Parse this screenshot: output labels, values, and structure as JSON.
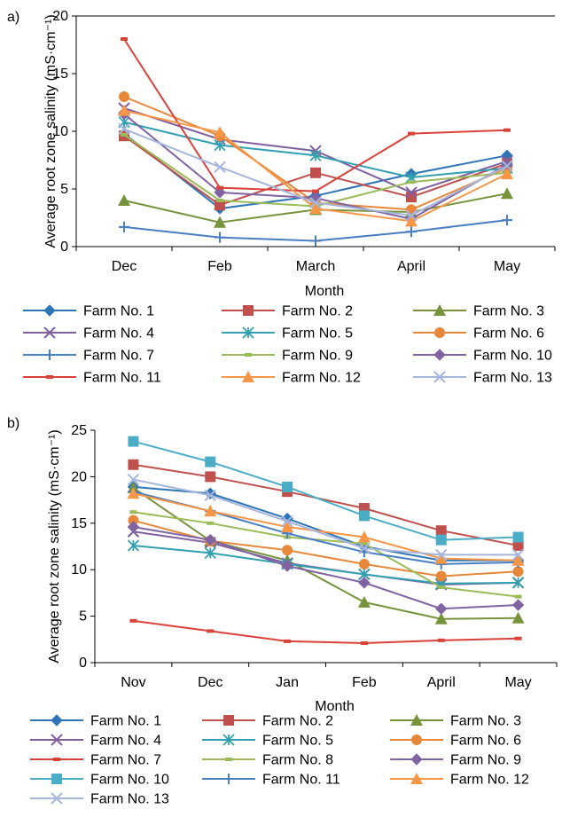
{
  "chart_data": [
    {
      "type": "line",
      "panel_label": "a)",
      "title": "",
      "xlabel": "Month",
      "ylabel": "Average root zone salinity (mS·cm⁻¹)",
      "categories": [
        "Dec",
        "Feb",
        "March",
        "April",
        "May"
      ],
      "ylim": [
        0,
        20
      ],
      "yticks": [
        0,
        5,
        10,
        15,
        20
      ],
      "grid": false,
      "legend_placement": "bottom",
      "series": [
        {
          "name": "Farm No. 1",
          "color": "#2E75B6",
          "marker": "diamond",
          "values": [
            9.8,
            3.3,
            4.4,
            6.3,
            7.9
          ]
        },
        {
          "name": "Farm No. 2",
          "color": "#C0504D",
          "marker": "square",
          "values": [
            9.6,
            3.6,
            6.4,
            4.3,
            7.2
          ]
        },
        {
          "name": "Farm No. 3",
          "color": "#77933C",
          "marker": "triangle",
          "values": [
            4.0,
            2.1,
            3.2,
            3.0,
            4.6
          ]
        },
        {
          "name": "Farm No. 4",
          "color": "#7F5FA0",
          "marker": "x",
          "values": [
            12.0,
            9.3,
            8.3,
            4.7,
            7.4
          ]
        },
        {
          "name": "Farm No. 5",
          "color": "#31A0B0",
          "marker": "star",
          "values": [
            10.8,
            8.8,
            7.9,
            6.0,
            6.8
          ]
        },
        {
          "name": "Farm No. 6",
          "color": "#E6873A",
          "marker": "circle",
          "values": [
            13.0,
            9.6,
            3.8,
            3.2,
            6.8
          ]
        },
        {
          "name": "Farm No. 7",
          "color": "#4A7EC2",
          "marker": "plus",
          "values": [
            1.7,
            0.8,
            0.5,
            1.3,
            2.3
          ]
        },
        {
          "name": "Farm No. 9",
          "color": "#9BBB59",
          "marker": "dash",
          "values": [
            9.7,
            4.0,
            3.5,
            5.6,
            6.4
          ]
        },
        {
          "name": "Farm No. 10",
          "color": "#8064A2",
          "marker": "diamond",
          "values": [
            11.5,
            4.7,
            4.2,
            2.4,
            7.1
          ]
        },
        {
          "name": "Farm No. 11",
          "color": "#D9423B",
          "marker": "dash",
          "values": [
            18.0,
            5.1,
            4.8,
            9.8,
            10.1
          ]
        },
        {
          "name": "Farm No. 12",
          "color": "#F79646",
          "marker": "triangle",
          "values": [
            11.8,
            9.9,
            3.3,
            2.2,
            6.3
          ]
        },
        {
          "name": "Farm No. 13",
          "color": "#A6B5DB",
          "marker": "x",
          "values": [
            10.2,
            6.9,
            3.8,
            2.7,
            7.0
          ]
        }
      ]
    },
    {
      "type": "line",
      "panel_label": "b)",
      "title": "",
      "xlabel": "Month",
      "ylabel": "Average root zone  salinity (mS·cm⁻¹)",
      "categories": [
        "Nov",
        "Dec",
        "Jan",
        "Feb",
        "April",
        "May"
      ],
      "ylim": [
        0,
        25
      ],
      "yticks": [
        0,
        5,
        10,
        15,
        20,
        25
      ],
      "grid": false,
      "legend_placement": "bottom",
      "series": [
        {
          "name": "Farm No. 1",
          "color": "#2E75B6",
          "marker": "diamond",
          "values": [
            18.9,
            18.2,
            15.5,
            12.5,
            11.0,
            11.0
          ]
        },
        {
          "name": "Farm No. 2",
          "color": "#C0504D",
          "marker": "square",
          "values": [
            21.3,
            20.0,
            18.4,
            16.6,
            14.2,
            12.6
          ]
        },
        {
          "name": "Farm No. 3",
          "color": "#77933C",
          "marker": "triangle",
          "values": [
            18.8,
            13.1,
            11.0,
            6.5,
            4.7,
            4.8
          ]
        },
        {
          "name": "Farm No. 4",
          "color": "#7F5FA0",
          "marker": "x",
          "values": [
            14.1,
            12.9,
            10.7,
            9.5,
            8.4,
            8.6
          ]
        },
        {
          "name": "Farm No. 5",
          "color": "#31A0B0",
          "marker": "star",
          "values": [
            12.6,
            11.8,
            10.6,
            9.5,
            8.5,
            8.6
          ]
        },
        {
          "name": "Farm No. 6",
          "color": "#E6873A",
          "marker": "circle",
          "values": [
            15.3,
            13.1,
            12.1,
            10.6,
            9.3,
            9.8
          ]
        },
        {
          "name": "Farm No. 7",
          "color": "#D9423B",
          "marker": "dash",
          "values": [
            4.5,
            3.4,
            2.3,
            2.1,
            2.4,
            2.6
          ]
        },
        {
          "name": "Farm No. 8",
          "color": "#9BBB59",
          "marker": "dash",
          "values": [
            16.2,
            15.0,
            13.5,
            12.8,
            8.1,
            7.1
          ]
        },
        {
          "name": "Farm No. 9",
          "color": "#8064A2",
          "marker": "diamond",
          "values": [
            14.6,
            13.2,
            10.4,
            8.6,
            5.8,
            6.2
          ]
        },
        {
          "name": "Farm No. 10",
          "color": "#4BACC6",
          "marker": "square",
          "values": [
            23.8,
            21.6,
            18.9,
            15.8,
            13.2,
            13.5
          ]
        },
        {
          "name": "Farm No. 11",
          "color": "#4A7EC2",
          "marker": "plus",
          "values": [
            18.4,
            16.3,
            13.9,
            11.9,
            10.6,
            10.8
          ]
        },
        {
          "name": "Farm No. 12",
          "color": "#F79646",
          "marker": "triangle",
          "values": [
            18.2,
            16.3,
            14.6,
            13.5,
            11.2,
            11.0
          ]
        },
        {
          "name": "Farm No. 13",
          "color": "#A6B5DB",
          "marker": "x",
          "values": [
            19.7,
            18.0,
            15.2,
            12.3,
            11.6,
            11.6
          ]
        }
      ]
    }
  ]
}
